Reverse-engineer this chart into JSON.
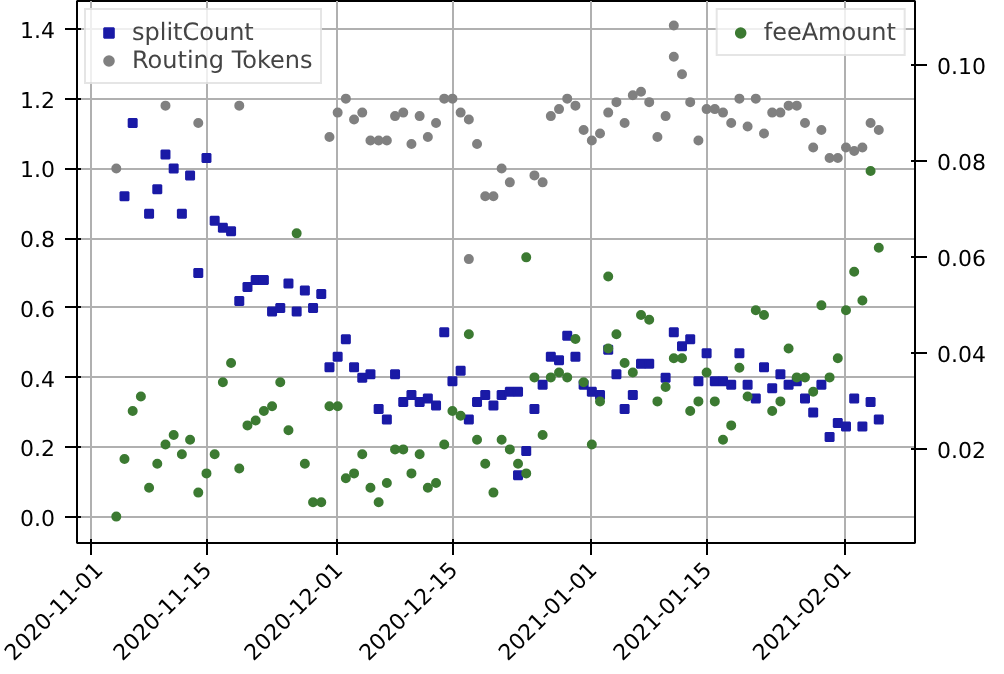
{
  "chart_data": {
    "type": "scatter",
    "xlim": [
      "2020-10-30T05:00",
      "2021-02-09T10:00"
    ],
    "xticks": [
      "2020-11-01",
      "2020-11-15",
      "2020-12-01",
      "2020-12-15",
      "2021-01-01",
      "2021-01-15",
      "2021-02-01"
    ],
    "ylim": [
      -0.074,
      1.48
    ],
    "yticks": [
      {
        "value": 0,
        "label": "0.0"
      },
      0.2,
      0.4,
      0.6,
      0.8,
      {
        "value": 1,
        "label": "1.0"
      },
      1.2,
      1.4
    ],
    "y2lim": [
      0.0005,
      0.1134
    ],
    "y2ticks": [
      0.02,
      0.04,
      0.06,
      0.08,
      {
        "value": 0.1,
        "label": "0.10"
      }
    ],
    "grid": true,
    "legend": "top left",
    "series": [
      {
        "name": "splitCount",
        "color": "#1a1aa6",
        "marker": "square",
        "x": [
          "2020-11-05",
          "2020-11-06",
          "2020-11-08",
          "2020-11-09",
          "2020-11-10",
          "2020-11-11",
          "2020-11-12",
          "2020-11-13",
          "2020-11-14",
          "2020-11-15",
          "2020-11-16",
          "2020-11-17",
          "2020-11-18",
          "2020-11-19",
          "2020-11-20",
          "2020-11-21",
          "2020-11-22",
          "2020-11-23",
          "2020-11-24",
          "2020-11-25",
          "2020-11-26",
          "2020-11-27",
          "2020-11-28",
          "2020-11-29",
          "2020-11-30",
          "2020-12-01",
          "2020-12-02",
          "2020-12-03",
          "2020-12-04",
          "2020-12-05",
          "2020-12-06",
          "2020-12-07",
          "2020-12-08",
          "2020-12-09",
          "2020-12-10",
          "2020-12-11",
          "2020-12-12",
          "2020-12-13",
          "2020-12-14",
          "2020-12-15",
          "2020-12-16",
          "2020-12-17",
          "2020-12-18",
          "2020-12-19",
          "2020-12-20",
          "2020-12-21",
          "2020-12-22",
          "2020-12-23",
          "2020-12-23",
          "2020-12-24",
          "2020-12-25",
          "2020-12-26",
          "2020-12-27",
          "2020-12-28",
          "2020-12-29",
          "2020-12-30",
          "2020-12-31",
          "2021-01-01",
          "2021-01-02",
          "2021-01-03",
          "2021-01-04",
          "2021-01-05",
          "2021-01-06",
          "2021-01-07",
          "2021-01-08",
          "2021-01-10",
          "2021-01-11",
          "2021-01-12",
          "2021-01-13",
          "2021-01-14",
          "2021-01-15",
          "2021-01-16",
          "2021-01-17",
          "2021-01-18",
          "2021-01-19",
          "2021-01-20",
          "2021-01-21",
          "2021-01-22",
          "2021-01-23",
          "2021-01-24",
          "2021-01-25",
          "2021-01-26",
          "2021-01-27",
          "2021-01-28",
          "2021-01-29",
          "2021-01-30",
          "2021-01-31",
          "2021-02-01",
          "2021-02-02",
          "2021-02-03",
          "2021-02-04",
          "2021-02-05"
        ],
        "values": [
          0.92,
          1.13,
          0.87,
          0.94,
          1.04,
          1.0,
          0.87,
          0.98,
          0.7,
          1.03,
          0.85,
          0.83,
          0.82,
          0.62,
          0.66,
          0.68,
          0.68,
          0.59,
          0.6,
          0.67,
          0.59,
          0.65,
          0.6,
          0.64,
          0.43,
          0.46,
          0.51,
          0.43,
          0.4,
          0.41,
          0.31,
          0.28,
          0.41,
          0.33,
          0.35,
          0.33,
          0.34,
          0.32,
          0.53,
          0.39,
          0.42,
          0.28,
          0.33,
          0.35,
          0.32,
          0.35,
          0.36,
          0.36,
          0.12,
          0.19,
          0.31,
          0.38,
          0.46,
          0.45,
          0.52,
          0.46,
          0.38,
          0.36,
          0.35,
          0.48,
          0.41,
          0.31,
          0.35,
          0.44,
          0.44,
          0.4,
          0.53,
          0.49,
          0.51,
          0.39,
          0.47,
          0.39,
          0.39,
          0.38,
          0.47,
          0.38,
          0.34,
          0.43,
          0.37,
          0.41,
          0.38,
          0.39,
          0.34,
          0.3,
          0.38,
          0.23,
          0.27,
          0.26,
          0.34,
          0.26,
          0.33,
          0.28
        ]
      },
      {
        "name": "Routing Tokens",
        "color": "#808080",
        "marker": "circle",
        "x": [
          "2020-11-04",
          "2020-11-10",
          "2020-11-14",
          "2020-11-19",
          "2020-11-30",
          "2020-12-01",
          "2020-12-02",
          "2020-12-03",
          "2020-12-04",
          "2020-12-05",
          "2020-12-06",
          "2020-12-07",
          "2020-12-08",
          "2020-12-09",
          "2020-12-10",
          "2020-12-11",
          "2020-12-12",
          "2020-12-13",
          "2020-12-14",
          "2020-12-15",
          "2020-12-16",
          "2020-12-17",
          "2020-12-17",
          "2020-12-18",
          "2020-12-19",
          "2020-12-20",
          "2020-12-21",
          "2020-12-22",
          "2020-12-25",
          "2020-12-26",
          "2020-12-27",
          "2020-12-28",
          "2020-12-29",
          "2020-12-30",
          "2020-12-31",
          "2021-01-01",
          "2021-01-02",
          "2021-01-03",
          "2021-01-04",
          "2021-01-05",
          "2021-01-06",
          "2021-01-07",
          "2021-01-08",
          "2021-01-09",
          "2021-01-10",
          "2021-01-11",
          "2021-01-11",
          "2021-01-12",
          "2021-01-13",
          "2021-01-14",
          "2021-01-15",
          "2021-01-16",
          "2021-01-17",
          "2021-01-18",
          "2021-01-19",
          "2021-01-20",
          "2021-01-21",
          "2021-01-22",
          "2021-01-23",
          "2021-01-24",
          "2021-01-25",
          "2021-01-26",
          "2021-01-27",
          "2021-01-28",
          "2021-01-29",
          "2021-01-30",
          "2021-01-31",
          "2021-02-01",
          "2021-02-02",
          "2021-02-03",
          "2021-02-04",
          "2021-02-05"
        ],
        "values": [
          1.0,
          1.18,
          1.13,
          1.18,
          1.09,
          1.16,
          1.2,
          1.14,
          1.16,
          1.08,
          1.08,
          1.08,
          1.15,
          1.16,
          1.07,
          1.15,
          1.09,
          1.13,
          1.2,
          1.2,
          1.16,
          1.14,
          0.74,
          1.07,
          0.92,
          0.92,
          1.0,
          0.96,
          0.98,
          0.96,
          1.15,
          1.17,
          1.2,
          1.18,
          1.11,
          1.08,
          1.1,
          1.16,
          1.19,
          1.13,
          1.21,
          1.22,
          1.19,
          1.09,
          1.15,
          1.41,
          1.32,
          1.27,
          1.19,
          1.08,
          1.17,
          1.17,
          1.16,
          1.13,
          1.2,
          1.12,
          1.2,
          1.1,
          1.16,
          1.16,
          1.18,
          1.18,
          1.13,
          1.06,
          1.11,
          1.03,
          1.03,
          1.06,
          1.05,
          1.06,
          1.13,
          1.11
        ]
      },
      {
        "name": "feeAmount",
        "color": "#3c7a32",
        "marker": "circle",
        "axis": "y2",
        "x": [
          "2020-11-04",
          "2020-11-05",
          "2020-11-06",
          "2020-11-07",
          "2020-11-08",
          "2020-11-09",
          "2020-11-10",
          "2020-11-11",
          "2020-11-12",
          "2020-11-13",
          "2020-11-14",
          "2020-11-15",
          "2020-11-16",
          "2020-11-17",
          "2020-11-18",
          "2020-11-19",
          "2020-11-20",
          "2020-11-21",
          "2020-11-22",
          "2020-11-23",
          "2020-11-24",
          "2020-11-25",
          "2020-11-26",
          "2020-11-27",
          "2020-11-28",
          "2020-11-29",
          "2020-11-30",
          "2020-12-01",
          "2020-12-02",
          "2020-12-03",
          "2020-12-04",
          "2020-12-05",
          "2020-12-06",
          "2020-12-07",
          "2020-12-08",
          "2020-12-09",
          "2020-12-10",
          "2020-12-11",
          "2020-12-12",
          "2020-12-13",
          "2020-12-14",
          "2020-12-15",
          "2020-12-16",
          "2020-12-17",
          "2020-12-18",
          "2020-12-19",
          "2020-12-20",
          "2020-12-21",
          "2020-12-22",
          "2020-12-23",
          "2020-12-24",
          "2020-12-24",
          "2020-12-25",
          "2020-12-26",
          "2020-12-27",
          "2020-12-28",
          "2020-12-29",
          "2020-12-30",
          "2020-12-31",
          "2021-01-01",
          "2021-01-02",
          "2021-01-03",
          "2021-01-03",
          "2021-01-04",
          "2021-01-05",
          "2021-01-06",
          "2021-01-07",
          "2021-01-08",
          "2021-01-09",
          "2021-01-10",
          "2021-01-11",
          "2021-01-12",
          "2021-01-13",
          "2021-01-14",
          "2021-01-15",
          "2021-01-16",
          "2021-01-17",
          "2021-01-18",
          "2021-01-19",
          "2021-01-20",
          "2021-01-21",
          "2021-01-22",
          "2021-01-23",
          "2021-01-24",
          "2021-01-25",
          "2021-01-26",
          "2021-01-27",
          "2021-01-28",
          "2021-01-29",
          "2021-01-30",
          "2021-01-31",
          "2021-02-01",
          "2021-02-02",
          "2021-02-03",
          "2021-02-04",
          "2021-02-05"
        ],
        "values": [
          0.006,
          0.018,
          0.028,
          0.031,
          0.012,
          0.017,
          0.021,
          0.023,
          0.019,
          0.022,
          0.011,
          0.015,
          0.019,
          0.034,
          0.038,
          0.016,
          0.025,
          0.026,
          0.028,
          0.029,
          0.034,
          0.024,
          0.065,
          0.017,
          0.009,
          0.009,
          0.029,
          0.029,
          0.014,
          0.015,
          0.019,
          0.012,
          0.009,
          0.013,
          0.02,
          0.02,
          0.015,
          0.019,
          0.012,
          0.013,
          0.021,
          0.028,
          0.027,
          0.044,
          0.022,
          0.017,
          0.011,
          0.022,
          0.02,
          0.017,
          0.015,
          0.06,
          0.035,
          0.023,
          0.035,
          0.036,
          0.035,
          0.043,
          0.034,
          0.021,
          0.03,
          0.041,
          0.056,
          0.044,
          0.038,
          0.036,
          0.048,
          0.047,
          0.03,
          0.033,
          0.039,
          0.039,
          0.028,
          0.03,
          0.036,
          0.03,
          0.022,
          0.025,
          0.037,
          0.031,
          0.049,
          0.048,
          0.028,
          0.03,
          0.041,
          0.035,
          0.035,
          0.032,
          0.05,
          0.035,
          0.039,
          0.049,
          0.057,
          0.051,
          0.078,
          0.062
        ]
      }
    ]
  }
}
